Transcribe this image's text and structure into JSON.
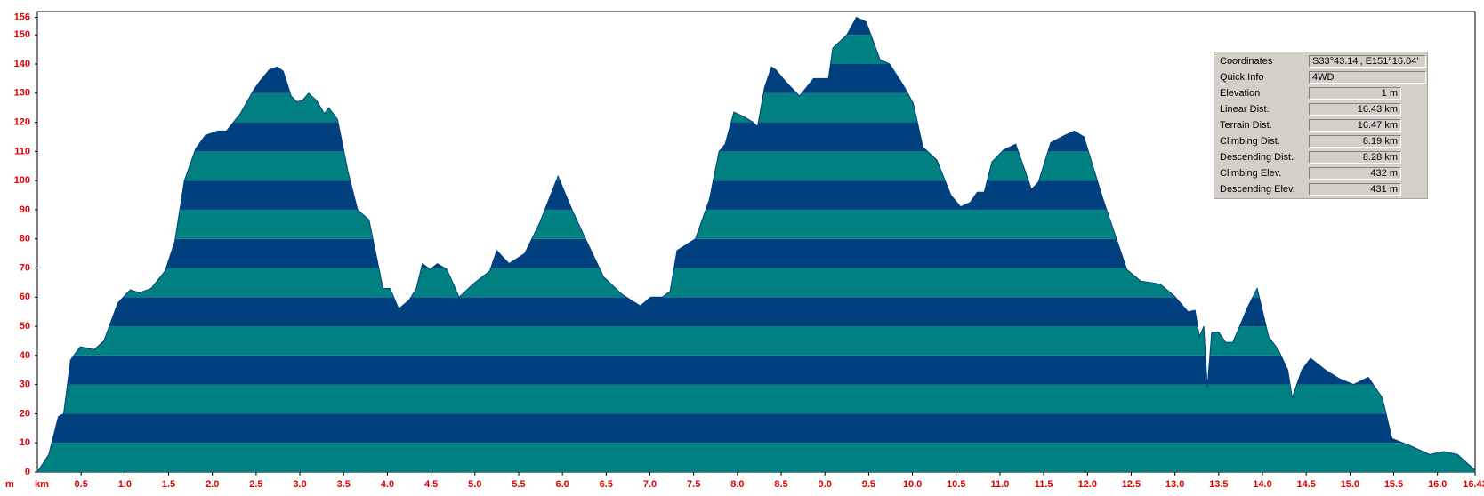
{
  "chart_data": {
    "type": "area",
    "x_label": "km",
    "y_label": "m",
    "x": [
      0,
      0.13,
      0.24,
      0.3,
      0.38,
      0.49,
      0.65,
      0.76,
      0.92,
      1.06,
      1.17,
      1.3,
      1.46,
      1.57,
      1.68,
      1.81,
      1.92,
      2.06,
      2.16,
      2.32,
      2.47,
      2.54,
      2.65,
      2.74,
      2.81,
      2.9,
      2.97,
      3.03,
      3.1,
      3.19,
      3.28,
      3.33,
      3.43,
      3.55,
      3.66,
      3.79,
      3.95,
      4.03,
      4.13,
      4.25,
      4.33,
      4.4,
      4.49,
      4.57,
      4.68,
      4.82,
      4.98,
      5.17,
      5.25,
      5.39,
      5.57,
      5.74,
      5.95,
      6.11,
      6.28,
      6.47,
      6.68,
      6.89,
      7.01,
      7.14,
      7.23,
      7.31,
      7.52,
      7.68,
      7.79,
      7.86,
      7.96,
      8.07,
      8.18,
      8.23,
      8.31,
      8.39,
      8.44,
      8.55,
      8.71,
      8.87,
      9.04,
      9.09,
      9.18,
      9.25,
      9.36,
      9.47,
      9.63,
      9.74,
      9.9,
      10.01,
      10.12,
      10.28,
      10.44,
      10.55,
      10.66,
      10.74,
      10.82,
      10.91,
      11.04,
      11.18,
      11.28,
      11.36,
      11.44,
      11.58,
      11.74,
      11.85,
      11.96,
      12.18,
      12.45,
      12.61,
      12.83,
      12.99,
      13.15,
      13.23,
      13.28,
      13.33,
      13.37,
      13.42,
      13.5,
      13.58,
      13.66,
      13.74,
      13.83,
      13.94,
      14.07,
      14.18,
      14.29,
      14.34,
      14.45,
      14.55,
      14.72,
      14.88,
      15.04,
      15.21,
      15.37,
      15.48,
      15.69,
      15.91,
      16.07,
      16.23,
      16.43
    ],
    "values": [
      0,
      6,
      19,
      20,
      38.5,
      43,
      42,
      45,
      58,
      62.5,
      61.5,
      63,
      69,
      79,
      100,
      111,
      115.5,
      117,
      117,
      123,
      131,
      134,
      138,
      139,
      137.5,
      129,
      127,
      127.5,
      130,
      127.5,
      123,
      125,
      121,
      103,
      90,
      86.5,
      63,
      63,
      56,
      59,
      63,
      71.5,
      69.5,
      71.5,
      69.5,
      60,
      64.5,
      69,
      76,
      71.5,
      75,
      85.5,
      101.5,
      90,
      79,
      67,
      61,
      57,
      60,
      60,
      62,
      76,
      80,
      93.5,
      110,
      112.5,
      123.5,
      122,
      120,
      118.5,
      132,
      139,
      138,
      134,
      129,
      135,
      135,
      145.5,
      148,
      150,
      156,
      154.5,
      141.5,
      140,
      132.5,
      126.5,
      111.5,
      107,
      95,
      91,
      92.5,
      96,
      96,
      106.5,
      110.5,
      112.5,
      104,
      97,
      99.5,
      113,
      115.5,
      117,
      115,
      93.5,
      69.5,
      65.5,
      64.5,
      60.5,
      55,
      55.5,
      46.5,
      50,
      29,
      48,
      48,
      44.5,
      44.5,
      50,
      56.5,
      63,
      46.5,
      42,
      35,
      25.5,
      35,
      39,
      35,
      32,
      30,
      32.5,
      25.5,
      11.5,
      9,
      6,
      7,
      6,
      0.6
    ],
    "band_colors": [
      "#008080",
      "#00407f"
    ],
    "xlim": [
      0,
      16.43
    ],
    "ylim": [
      0,
      158
    ],
    "xticks": [
      0.5,
      {
        "value": 1,
        "label": "1.0"
      },
      1.5,
      {
        "value": 2,
        "label": "2.0"
      },
      2.5,
      {
        "value": 3,
        "label": "3.0"
      },
      3.5,
      {
        "value": 4,
        "label": "4.0"
      },
      4.5,
      {
        "value": 5,
        "label": "5.0"
      },
      5.5,
      {
        "value": 6,
        "label": "6.0"
      },
      6.5,
      {
        "value": 7,
        "label": "7.0"
      },
      7.5,
      {
        "value": 8,
        "label": "8.0"
      },
      8.5,
      {
        "value": 9,
        "label": "9.0"
      },
      9.5,
      {
        "value": 10,
        "label": "10.0"
      },
      10.5,
      {
        "value": 11,
        "label": "11.0"
      },
      11.5,
      {
        "value": 12,
        "label": "12.0"
      },
      12.5,
      {
        "value": 13,
        "label": "13.0"
      },
      13.5,
      {
        "value": 14,
        "label": "14.0"
      },
      14.5,
      {
        "value": 15,
        "label": "15.0"
      },
      15.5,
      {
        "value": 16,
        "label": "16.0"
      },
      16.43
    ],
    "yticks": [
      0,
      10,
      20,
      30,
      40,
      50,
      60,
      70,
      80,
      90,
      100,
      110,
      120,
      130,
      140,
      150,
      156
    ]
  },
  "info_panel": {
    "rows": [
      {
        "label": "Coordinates",
        "value": "S33°43.14', E151°16.04'"
      },
      {
        "label": "Quick Info",
        "value": "4WD"
      },
      {
        "label": "Elevation",
        "value": "1 m"
      },
      {
        "label": "Linear Dist.",
        "value": "16.43 km"
      },
      {
        "label": "Terrain Dist.",
        "value": "16.47 km"
      },
      {
        "label": "Climbing Dist.",
        "value": "8.19 km"
      },
      {
        "label": "Descending Dist.",
        "value": "8.28 km"
      },
      {
        "label": "Climbing Elev.",
        "value": "432 m"
      },
      {
        "label": "Descending Elev.",
        "value": "431 m"
      }
    ]
  }
}
